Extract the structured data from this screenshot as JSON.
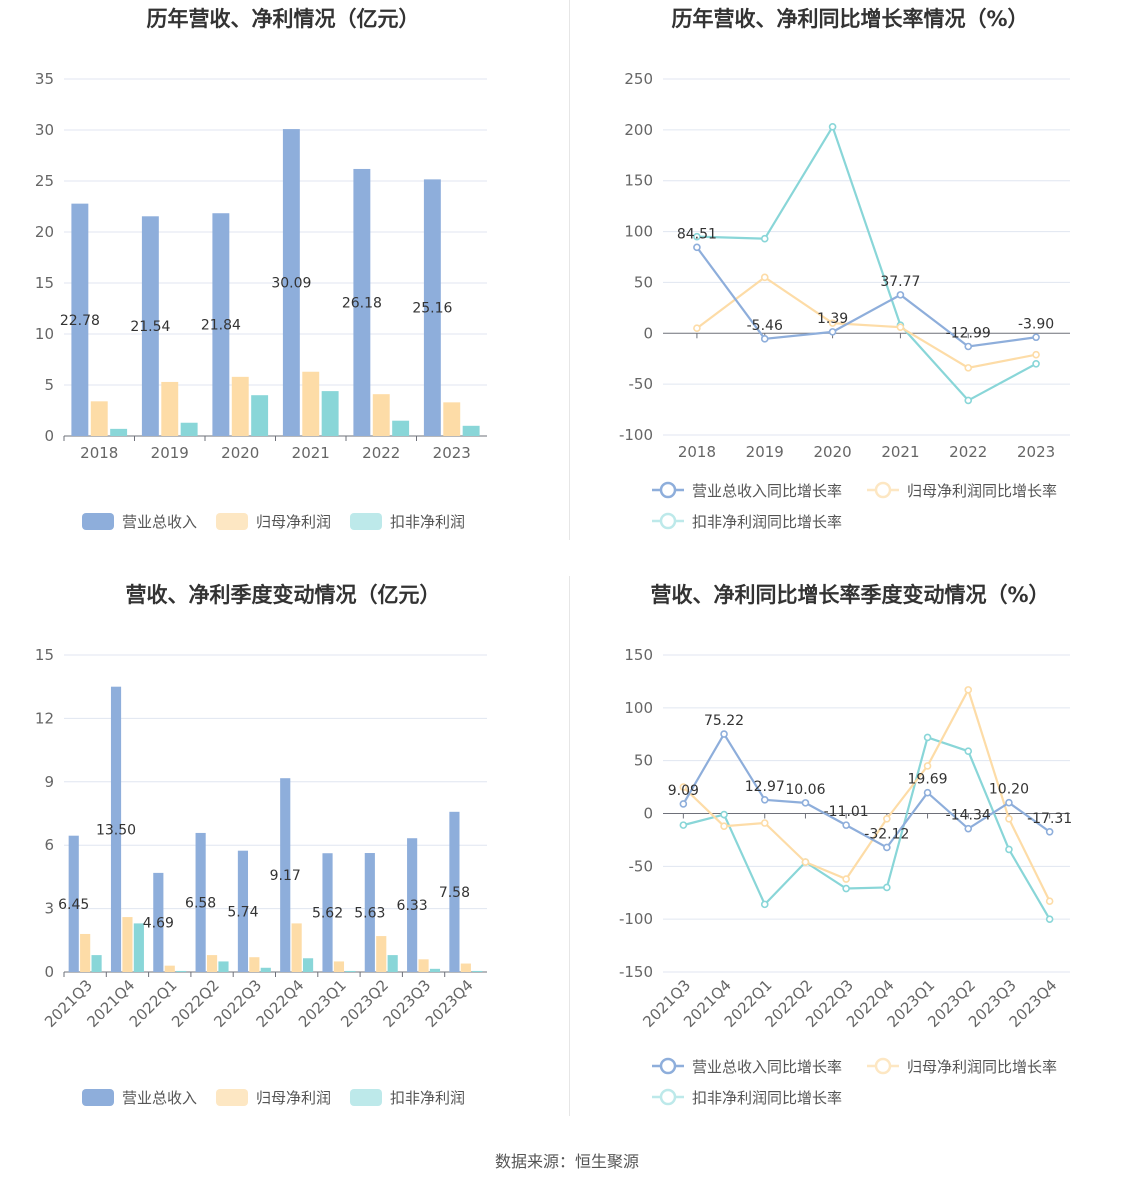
{
  "footer": {
    "source": "数据来源：恒生聚源"
  },
  "colors": {
    "revenue": "#8eaedb",
    "profit": "#fddca7",
    "deducted": "#89d6d8"
  },
  "chart_data": [
    {
      "id": "annual-bar",
      "type": "bar",
      "title": "历年营收、净利情况（亿元）",
      "categories": [
        "2018",
        "2019",
        "2020",
        "2021",
        "2022",
        "2023"
      ],
      "yticks": [
        "35",
        "30",
        "25",
        "20",
        "15",
        "10",
        "5",
        "0"
      ],
      "ylim": [
        0,
        35
      ],
      "series": [
        {
          "name": "营业总收入",
          "values": [
            22.78,
            21.54,
            21.84,
            30.09,
            26.18,
            25.16
          ],
          "labels": [
            "22.78",
            "21.54",
            "21.84",
            "30.09",
            "26.18",
            "25.16"
          ]
        },
        {
          "name": "归母净利润",
          "values": [
            3.4,
            5.3,
            5.8,
            6.3,
            4.1,
            3.3
          ]
        },
        {
          "name": "扣非净利润",
          "values": [
            0.7,
            1.3,
            4.0,
            4.4,
            1.5,
            1.0
          ]
        }
      ],
      "legend": "bottom"
    },
    {
      "id": "annual-growth-line",
      "type": "line",
      "title": "历年营收、净利同比增长率情况（%）",
      "categories": [
        "2018",
        "2019",
        "2020",
        "2021",
        "2022",
        "2023"
      ],
      "yticks": [
        "250",
        "200",
        "150",
        "100",
        "50",
        "0",
        "-50",
        "-100"
      ],
      "ylim": [
        -100,
        250
      ],
      "series": [
        {
          "name": "营业总收入同比增长率",
          "values": [
            84.51,
            -5.46,
            1.39,
            37.77,
            -12.99,
            -3.9
          ],
          "labels": [
            "84.51",
            "-5.46",
            "1.39",
            "37.77",
            "-12.99",
            "-3.90"
          ]
        },
        {
          "name": "归母净利润同比增长率",
          "values": [
            5,
            55,
            10,
            6,
            -34,
            -21
          ]
        },
        {
          "name": "扣非净利润同比增长率",
          "values": [
            95,
            93,
            203,
            8,
            -66,
            -30
          ]
        }
      ],
      "legend": "bottom"
    },
    {
      "id": "quarterly-bar",
      "type": "bar",
      "title": "营收、净利季度变动情况（亿元）",
      "categories": [
        "2021Q3",
        "2021Q4",
        "2022Q1",
        "2022Q2",
        "2022Q3",
        "2022Q4",
        "2023Q1",
        "2023Q2",
        "2023Q3",
        "2023Q4"
      ],
      "yticks": [
        "15",
        "12",
        "9",
        "6",
        "3",
        "0"
      ],
      "ylim": [
        0,
        15
      ],
      "series": [
        {
          "name": "营业总收入",
          "values": [
            6.45,
            13.5,
            4.69,
            6.58,
            5.74,
            9.17,
            5.62,
            5.63,
            6.33,
            7.58
          ],
          "labels": [
            "6.45",
            "13.50",
            "4.69",
            "6.58",
            "5.74",
            "9.17",
            "5.62",
            "5.63",
            "6.33",
            "7.58"
          ]
        },
        {
          "name": "归母净利润",
          "values": [
            1.8,
            2.6,
            0.3,
            0.8,
            0.7,
            2.3,
            0.5,
            1.7,
            0.6,
            0.4
          ]
        },
        {
          "name": "扣非净利润",
          "values": [
            0.8,
            2.3,
            0.05,
            0.5,
            0.2,
            0.65,
            0.05,
            0.8,
            0.15,
            0.05
          ]
        }
      ],
      "legend": "bottom"
    },
    {
      "id": "quarterly-growth-line",
      "type": "line",
      "title": "营收、净利同比增长率季度变动情况（%）",
      "categories": [
        "2021Q3",
        "2021Q4",
        "2022Q1",
        "2022Q2",
        "2022Q3",
        "2022Q4",
        "2023Q1",
        "2023Q2",
        "2023Q3",
        "2023Q4"
      ],
      "yticks": [
        "150",
        "100",
        "50",
        "0",
        "-50",
        "-100",
        "-150"
      ],
      "ylim": [
        -150,
        150
      ],
      "series": [
        {
          "name": "营业总收入同比增长率",
          "values": [
            9.09,
            75.22,
            12.97,
            10.06,
            -11.01,
            -32.12,
            19.69,
            -14.34,
            10.2,
            -17.31
          ],
          "labels": [
            "9.09",
            "75.22",
            "12.97",
            "10.06",
            "-11.01",
            "-32.12",
            "19.69",
            "-14.34",
            "10.20",
            "-17.31"
          ]
        },
        {
          "name": "归母净利润同比增长率",
          "values": [
            25,
            -12,
            -9,
            -46,
            -62,
            -5,
            45,
            117,
            -5,
            -83
          ]
        },
        {
          "name": "扣非净利润同比增长率",
          "values": [
            -11,
            -1,
            -86,
            -46,
            -71,
            -70,
            72,
            59,
            -34,
            -100
          ]
        }
      ],
      "legend": "bottom"
    }
  ]
}
